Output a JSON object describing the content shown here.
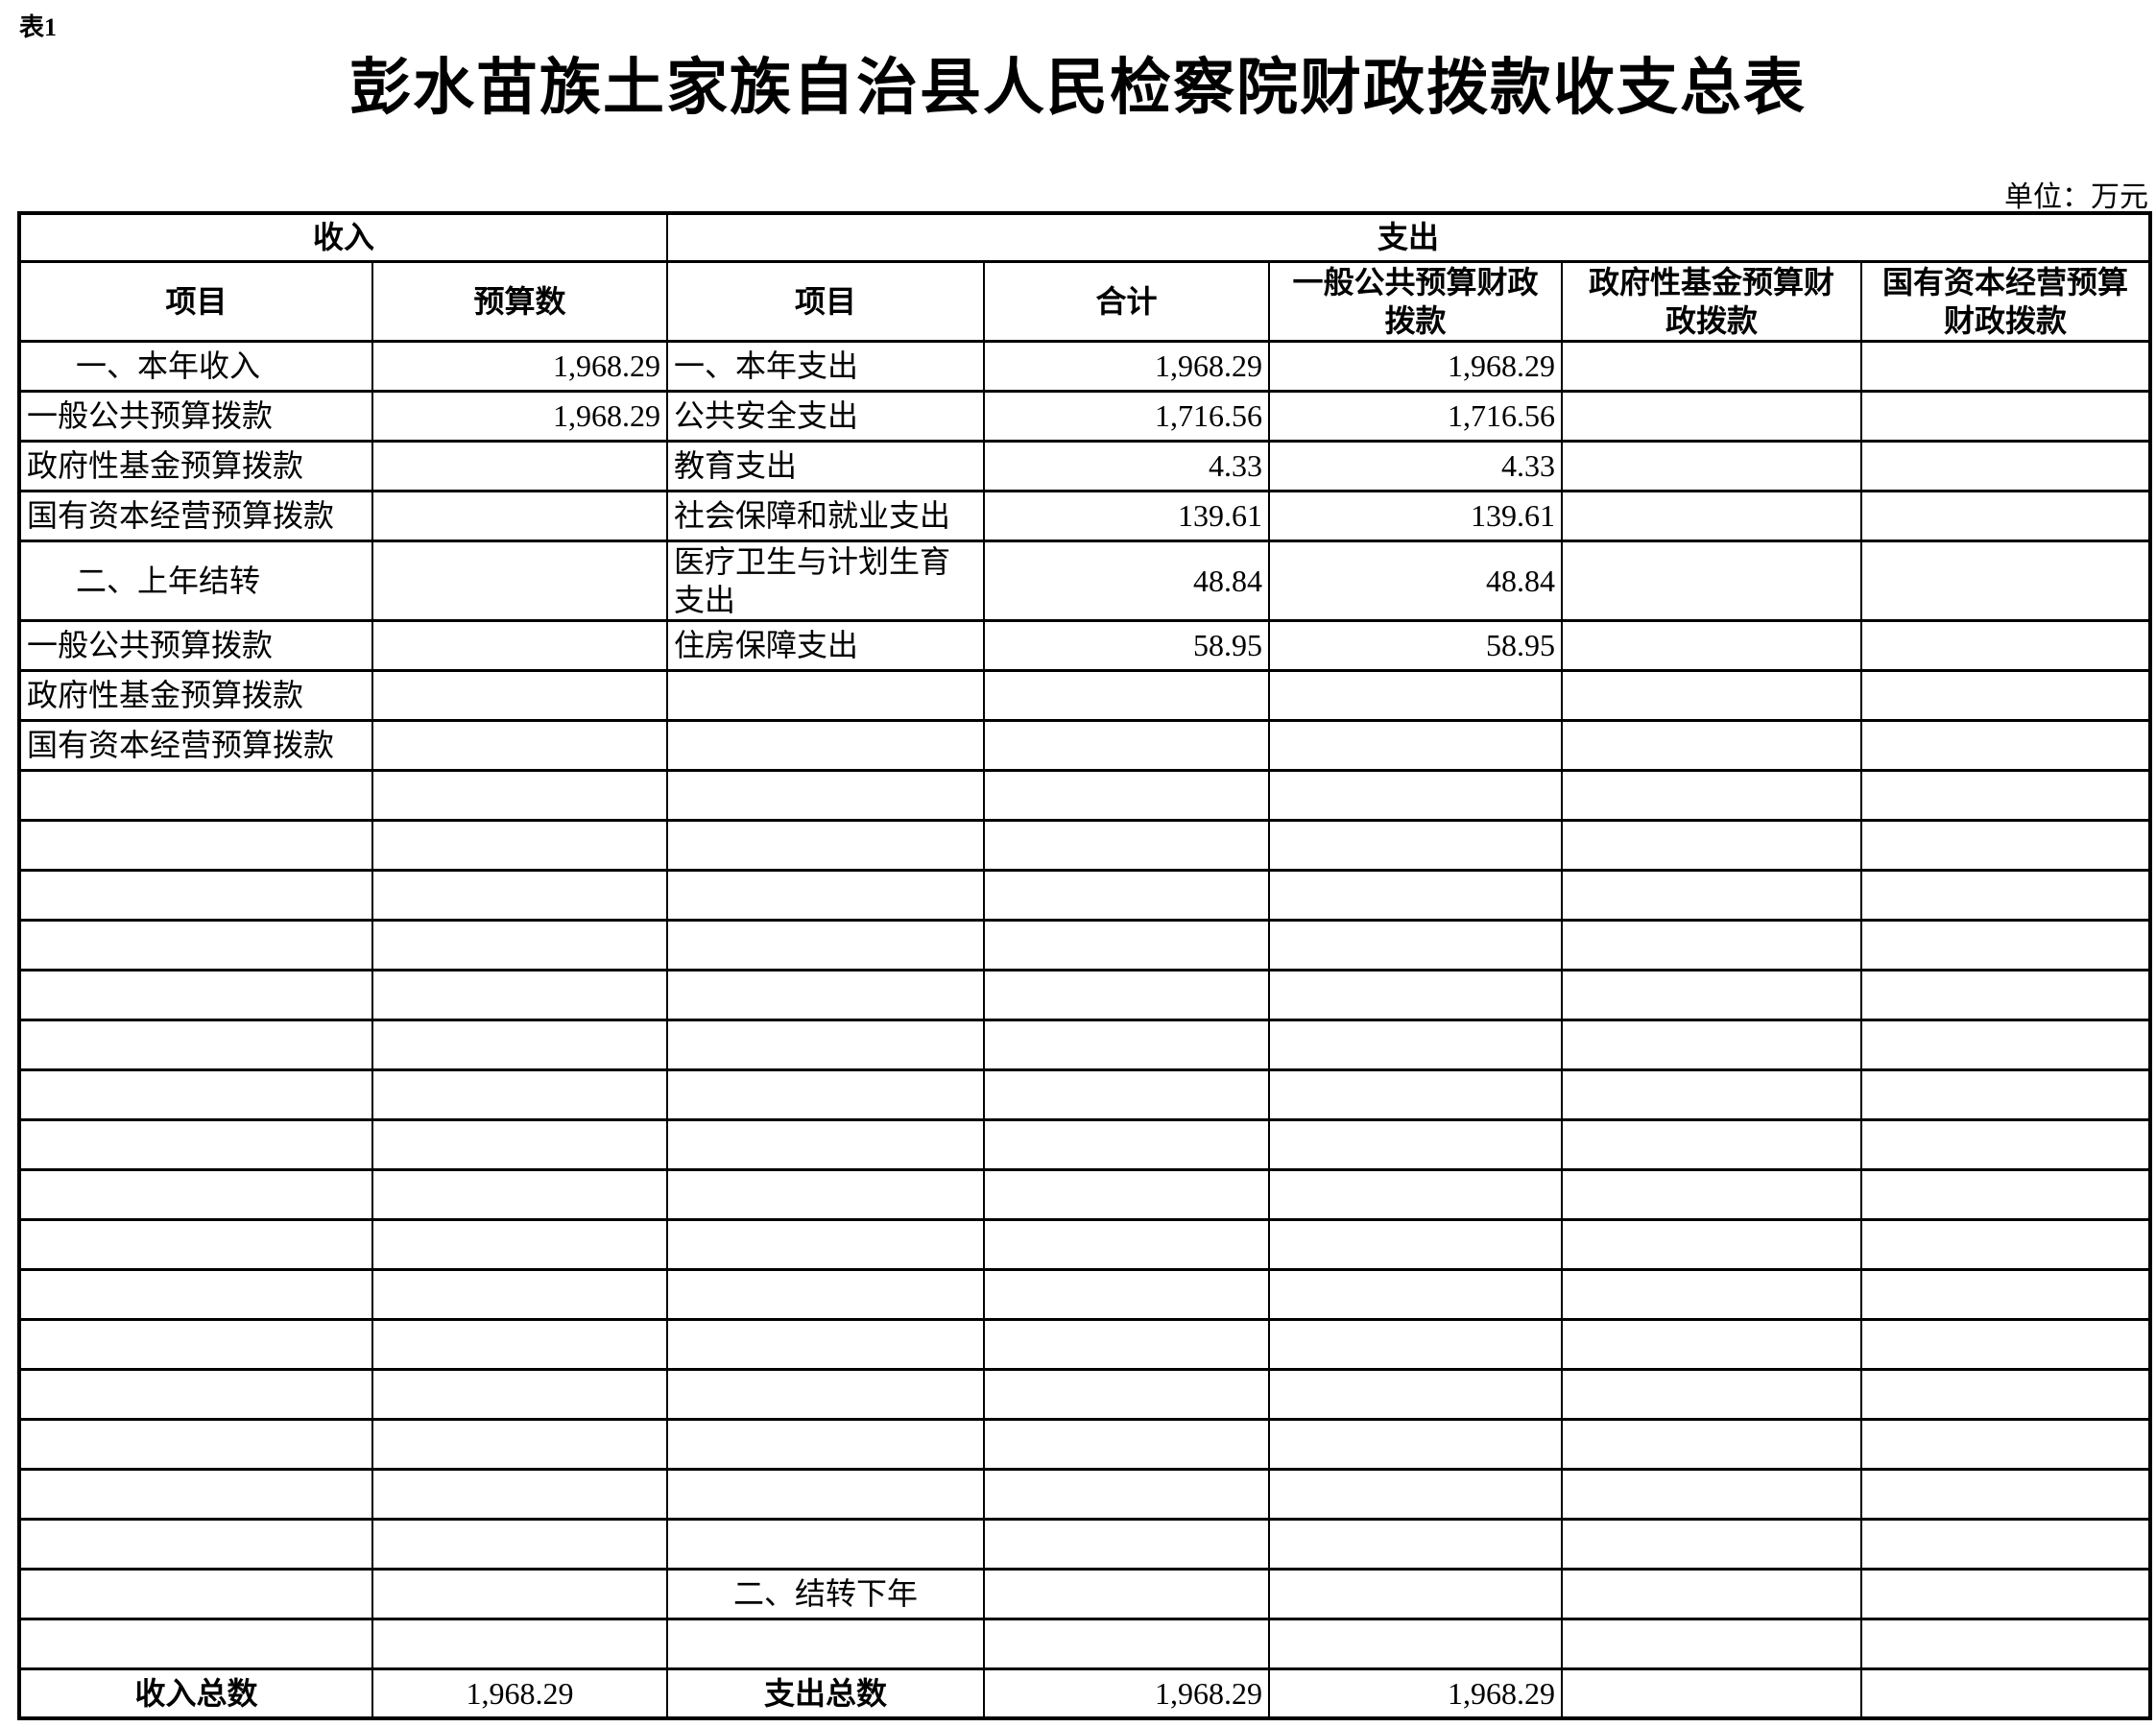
{
  "page": {
    "table_label": "表1",
    "title": "彭水苗族土家族自治县人民检察院财政拨款收支总表",
    "unit_note": "单位：万元"
  },
  "table": {
    "group_headers": {
      "income": "收入",
      "expense": "支出"
    },
    "columns": [
      "项目",
      "预算数",
      "项目",
      "合计",
      "一般公共预算财政\n拨款",
      "政府性基金预算财\n政拨款",
      "国有资本经营预算\n财政拨款"
    ],
    "rows": [
      {
        "cells": [
          "一、本年收入",
          "1,968.29",
          "一、本年支出",
          "1,968.29",
          "1,968.29",
          "",
          ""
        ],
        "align": [
          "indent",
          "num",
          "left",
          "num",
          "num",
          "num",
          "num"
        ]
      },
      {
        "cells": [
          "一般公共预算拨款",
          "1,968.29",
          "公共安全支出",
          "1,716.56",
          "1,716.56",
          "",
          ""
        ],
        "align": [
          "left",
          "num",
          "left",
          "num",
          "num",
          "num",
          "num"
        ]
      },
      {
        "cells": [
          "政府性基金预算拨款",
          "",
          "教育支出",
          "4.33",
          "4.33",
          "",
          ""
        ],
        "align": [
          "left",
          "num",
          "left",
          "num",
          "num",
          "num",
          "num"
        ]
      },
      {
        "cells": [
          "国有资本经营预算拨款",
          "",
          "社会保障和就业支出",
          "139.61",
          "139.61",
          "",
          ""
        ],
        "align": [
          "left",
          "num",
          "left",
          "num",
          "num",
          "num",
          "num"
        ]
      },
      {
        "cells": [
          "二、上年结转",
          "",
          "医疗卫生与计划生育\n支出",
          "48.84",
          "48.84",
          "",
          ""
        ],
        "align": [
          "indent",
          "num",
          "left",
          "num",
          "num",
          "num",
          "num"
        ],
        "tall": true
      },
      {
        "cells": [
          "一般公共预算拨款",
          "",
          "住房保障支出",
          "58.95",
          "58.95",
          "",
          ""
        ],
        "align": [
          "left",
          "num",
          "left",
          "num",
          "num",
          "num",
          "num"
        ]
      },
      {
        "cells": [
          "政府性基金预算拨款",
          "",
          "",
          "",
          "",
          "",
          ""
        ],
        "align": [
          "left",
          "num",
          "left",
          "num",
          "num",
          "num",
          "num"
        ]
      },
      {
        "cells": [
          "国有资本经营预算拨款",
          "",
          "",
          "",
          "",
          "",
          ""
        ],
        "align": [
          "left",
          "num",
          "left",
          "num",
          "num",
          "num",
          "num"
        ]
      },
      {
        "cells": [
          "",
          "",
          "",
          "",
          "",
          "",
          ""
        ]
      },
      {
        "cells": [
          "",
          "",
          "",
          "",
          "",
          "",
          ""
        ]
      },
      {
        "cells": [
          "",
          "",
          "",
          "",
          "",
          "",
          ""
        ]
      },
      {
        "cells": [
          "",
          "",
          "",
          "",
          "",
          "",
          ""
        ]
      },
      {
        "cells": [
          "",
          "",
          "",
          "",
          "",
          "",
          ""
        ]
      },
      {
        "cells": [
          "",
          "",
          "",
          "",
          "",
          "",
          ""
        ]
      },
      {
        "cells": [
          "",
          "",
          "",
          "",
          "",
          "",
          ""
        ]
      },
      {
        "cells": [
          "",
          "",
          "",
          "",
          "",
          "",
          ""
        ]
      },
      {
        "cells": [
          "",
          "",
          "",
          "",
          "",
          "",
          ""
        ]
      },
      {
        "cells": [
          "",
          "",
          "",
          "",
          "",
          "",
          ""
        ]
      },
      {
        "cells": [
          "",
          "",
          "",
          "",
          "",
          "",
          ""
        ]
      },
      {
        "cells": [
          "",
          "",
          "",
          "",
          "",
          "",
          ""
        ]
      },
      {
        "cells": [
          "",
          "",
          "",
          "",
          "",
          "",
          ""
        ]
      },
      {
        "cells": [
          "",
          "",
          "",
          "",
          "",
          "",
          ""
        ]
      },
      {
        "cells": [
          "",
          "",
          "",
          "",
          "",
          "",
          ""
        ]
      },
      {
        "cells": [
          "",
          "",
          "",
          "",
          "",
          "",
          ""
        ]
      },
      {
        "cells": [
          "",
          "",
          "二、结转下年",
          "",
          "",
          "",
          ""
        ],
        "align": [
          "left",
          "num",
          "center",
          "num",
          "num",
          "num",
          "num"
        ]
      },
      {
        "cells": [
          "",
          "",
          "",
          "",
          "",
          "",
          ""
        ]
      },
      {
        "cells": [
          "收入总数",
          "1,968.29",
          "支出总数",
          "1,968.29",
          "1,968.29",
          "",
          ""
        ],
        "align": [
          "centerb",
          "center",
          "centerb",
          "num",
          "num",
          "num",
          "num"
        ]
      }
    ]
  }
}
